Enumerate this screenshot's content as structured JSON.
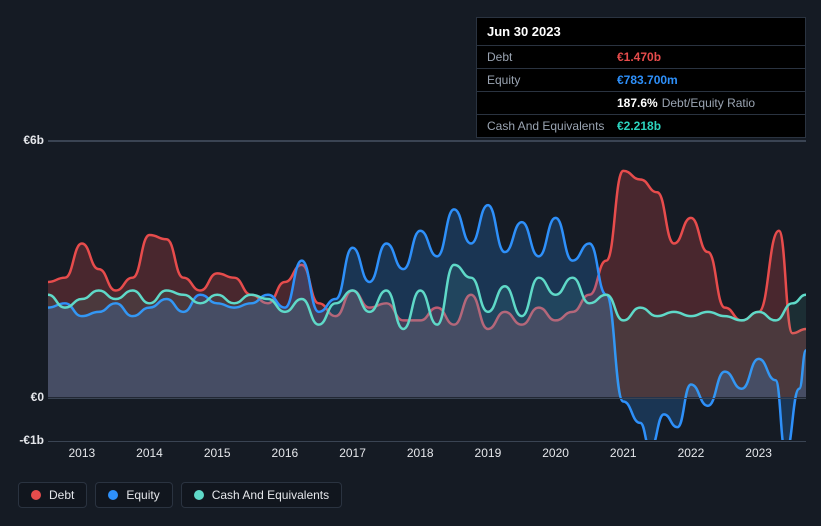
{
  "tooltip": {
    "date": "Jun 30 2023",
    "rows": [
      {
        "label": "Debt",
        "value": "€1.470b",
        "color": "#e74c4c",
        "sub": ""
      },
      {
        "label": "Equity",
        "value": "€783.700m",
        "color": "#2e90fa",
        "sub": ""
      },
      {
        "label": "",
        "value": "187.6%",
        "color": "#ffffff",
        "sub": "Debt/Equity Ratio"
      },
      {
        "label": "Cash And Equivalents",
        "value": "€2.218b",
        "color": "#2dd4bf",
        "sub": ""
      }
    ]
  },
  "chart": {
    "type": "area",
    "background_color": "#151b24",
    "grid_color": "#3a4453",
    "y_top_value": 6,
    "y_zero_value": 0,
    "y_bottom_value": -1,
    "y_labels": [
      {
        "text": "€6b",
        "v": 6
      },
      {
        "text": "€0",
        "v": 0
      },
      {
        "text": "-€1b",
        "v": -1
      }
    ],
    "x_labels": [
      "2013",
      "2014",
      "2015",
      "2016",
      "2017",
      "2018",
      "2019",
      "2020",
      "2021",
      "2022",
      "2023"
    ],
    "x_start": 2012.5,
    "x_end": 2023.7,
    "series": [
      {
        "name": "Debt",
        "stroke": "#e74c4c",
        "fill": "rgba(231,76,76,0.25)",
        "stroke_width": 2.5,
        "points": [
          [
            2012.5,
            2.7
          ],
          [
            2012.75,
            2.8
          ],
          [
            2013.0,
            3.6
          ],
          [
            2013.25,
            3.0
          ],
          [
            2013.5,
            2.5
          ],
          [
            2013.75,
            2.8
          ],
          [
            2014.0,
            3.8
          ],
          [
            2014.25,
            3.7
          ],
          [
            2014.5,
            2.8
          ],
          [
            2014.75,
            2.5
          ],
          [
            2015.0,
            2.9
          ],
          [
            2015.25,
            2.8
          ],
          [
            2015.5,
            2.4
          ],
          [
            2015.75,
            2.2
          ],
          [
            2016.0,
            2.7
          ],
          [
            2016.25,
            3.1
          ],
          [
            2016.5,
            2.2
          ],
          [
            2016.75,
            1.9
          ],
          [
            2017.0,
            2.5
          ],
          [
            2017.25,
            2.1
          ],
          [
            2017.5,
            2.2
          ],
          [
            2017.75,
            1.8
          ],
          [
            2018.0,
            1.8
          ],
          [
            2018.25,
            2.1
          ],
          [
            2018.5,
            1.7
          ],
          [
            2018.75,
            2.4
          ],
          [
            2019.0,
            1.6
          ],
          [
            2019.25,
            2.0
          ],
          [
            2019.5,
            1.7
          ],
          [
            2019.75,
            2.1
          ],
          [
            2020.0,
            1.8
          ],
          [
            2020.25,
            2.0
          ],
          [
            2020.5,
            2.4
          ],
          [
            2020.75,
            3.2
          ],
          [
            2021.0,
            5.3
          ],
          [
            2021.25,
            5.1
          ],
          [
            2021.5,
            4.8
          ],
          [
            2021.75,
            3.6
          ],
          [
            2022.0,
            4.2
          ],
          [
            2022.25,
            3.4
          ],
          [
            2022.5,
            2.1
          ],
          [
            2022.75,
            1.8
          ],
          [
            2023.0,
            2.0
          ],
          [
            2023.3,
            3.9
          ],
          [
            2023.5,
            1.5
          ],
          [
            2023.7,
            1.6
          ]
        ]
      },
      {
        "name": "Equity",
        "stroke": "#2e90fa",
        "fill": "rgba(46,144,250,0.22)",
        "stroke_width": 2.5,
        "points": [
          [
            2012.5,
            2.1
          ],
          [
            2012.75,
            2.2
          ],
          [
            2013.0,
            1.9
          ],
          [
            2013.25,
            2.0
          ],
          [
            2013.5,
            2.2
          ],
          [
            2013.75,
            1.9
          ],
          [
            2014.0,
            2.1
          ],
          [
            2014.25,
            2.3
          ],
          [
            2014.5,
            2.0
          ],
          [
            2014.75,
            2.4
          ],
          [
            2015.0,
            2.2
          ],
          [
            2015.25,
            2.1
          ],
          [
            2015.5,
            2.2
          ],
          [
            2015.75,
            2.4
          ],
          [
            2016.0,
            2.1
          ],
          [
            2016.25,
            3.2
          ],
          [
            2016.5,
            2.0
          ],
          [
            2016.75,
            2.3
          ],
          [
            2017.0,
            3.5
          ],
          [
            2017.25,
            2.7
          ],
          [
            2017.5,
            3.6
          ],
          [
            2017.75,
            3.0
          ],
          [
            2018.0,
            3.9
          ],
          [
            2018.25,
            3.3
          ],
          [
            2018.5,
            4.4
          ],
          [
            2018.75,
            3.6
          ],
          [
            2019.0,
            4.5
          ],
          [
            2019.25,
            3.4
          ],
          [
            2019.5,
            4.1
          ],
          [
            2019.75,
            3.3
          ],
          [
            2020.0,
            4.2
          ],
          [
            2020.25,
            3.2
          ],
          [
            2020.5,
            3.6
          ],
          [
            2020.75,
            2.4
          ],
          [
            2021.0,
            -0.1
          ],
          [
            2021.25,
            -0.6
          ],
          [
            2021.4,
            -1.2
          ],
          [
            2021.6,
            -0.4
          ],
          [
            2021.8,
            -0.7
          ],
          [
            2022.0,
            0.3
          ],
          [
            2022.25,
            -0.2
          ],
          [
            2022.5,
            0.6
          ],
          [
            2022.75,
            0.2
          ],
          [
            2023.0,
            0.9
          ],
          [
            2023.25,
            0.4
          ],
          [
            2023.4,
            -1.3
          ],
          [
            2023.6,
            0.2
          ],
          [
            2023.7,
            1.1
          ]
        ]
      },
      {
        "name": "Cash And Equivalents",
        "stroke": "#5fd9c8",
        "fill": "rgba(95,217,200,0.10)",
        "stroke_width": 2.5,
        "points": [
          [
            2012.5,
            2.4
          ],
          [
            2012.75,
            2.1
          ],
          [
            2013.0,
            2.3
          ],
          [
            2013.25,
            2.5
          ],
          [
            2013.5,
            2.3
          ],
          [
            2013.75,
            2.5
          ],
          [
            2014.0,
            2.2
          ],
          [
            2014.25,
            2.5
          ],
          [
            2014.5,
            2.4
          ],
          [
            2014.75,
            2.2
          ],
          [
            2015.0,
            2.4
          ],
          [
            2015.25,
            2.2
          ],
          [
            2015.5,
            2.4
          ],
          [
            2015.75,
            2.3
          ],
          [
            2016.0,
            2.0
          ],
          [
            2016.25,
            2.3
          ],
          [
            2016.5,
            1.7
          ],
          [
            2016.75,
            2.2
          ],
          [
            2017.0,
            2.5
          ],
          [
            2017.25,
            2.0
          ],
          [
            2017.5,
            2.5
          ],
          [
            2017.75,
            1.6
          ],
          [
            2018.0,
            2.5
          ],
          [
            2018.25,
            1.7
          ],
          [
            2018.5,
            3.1
          ],
          [
            2018.75,
            2.8
          ],
          [
            2019.0,
            2.0
          ],
          [
            2019.25,
            2.6
          ],
          [
            2019.5,
            1.9
          ],
          [
            2019.75,
            2.8
          ],
          [
            2020.0,
            2.4
          ],
          [
            2020.25,
            2.8
          ],
          [
            2020.5,
            2.2
          ],
          [
            2020.75,
            2.4
          ],
          [
            2021.0,
            1.8
          ],
          [
            2021.25,
            2.1
          ],
          [
            2021.5,
            1.9
          ],
          [
            2021.75,
            2.0
          ],
          [
            2022.0,
            1.9
          ],
          [
            2022.25,
            2.0
          ],
          [
            2022.5,
            1.9
          ],
          [
            2022.75,
            1.8
          ],
          [
            2023.0,
            2.0
          ],
          [
            2023.25,
            1.8
          ],
          [
            2023.5,
            2.2
          ],
          [
            2023.7,
            2.4
          ]
        ]
      }
    ]
  },
  "legend": [
    {
      "label": "Debt",
      "color": "#e74c4c"
    },
    {
      "label": "Equity",
      "color": "#2e90fa"
    },
    {
      "label": "Cash And Equivalents",
      "color": "#5fd9c8"
    }
  ]
}
